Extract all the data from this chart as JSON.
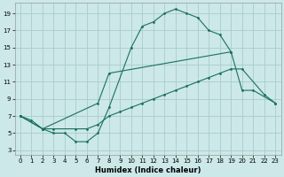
{
  "xlabel": "Humidex (Indice chaleur)",
  "background_color": "#cce8e8",
  "grid_color": "#aacccc",
  "line_color": "#1a7060",
  "xlim": [
    -0.5,
    23.5
  ],
  "ylim": [
    2.5,
    20.2
  ],
  "xticks": [
    0,
    1,
    2,
    3,
    4,
    5,
    6,
    7,
    8,
    9,
    10,
    11,
    12,
    13,
    14,
    15,
    16,
    17,
    18,
    19,
    20,
    21,
    22,
    23
  ],
  "yticks": [
    3,
    5,
    7,
    9,
    11,
    13,
    15,
    17,
    19
  ],
  "line1_x": [
    0,
    1,
    2,
    3,
    4,
    5,
    6,
    7,
    8,
    10,
    11,
    12,
    13,
    14,
    15,
    16,
    17,
    18,
    19
  ],
  "line1_y": [
    7,
    6.5,
    5.5,
    5,
    5,
    4,
    4,
    5,
    8,
    15,
    17.5,
    18,
    19,
    19.5,
    19,
    18.5,
    17,
    16.5,
    14.5
  ],
  "line2_x": [
    0,
    2,
    7,
    8,
    19,
    20,
    21,
    23
  ],
  "line2_y": [
    7,
    5.5,
    8.5,
    12,
    14.5,
    10,
    10,
    8.5
  ],
  "line3_x": [
    0,
    2,
    3,
    5,
    6,
    7,
    8,
    9,
    10,
    11,
    12,
    13,
    14,
    15,
    16,
    17,
    18,
    19,
    20,
    22,
    23
  ],
  "line3_y": [
    7,
    5.5,
    5.5,
    5.5,
    5.5,
    6,
    7,
    7.5,
    8,
    8.5,
    9,
    9.5,
    10,
    10.5,
    11,
    11.5,
    12,
    12.5,
    12.5,
    9.5,
    8.5
  ],
  "figwidth": 3.2,
  "figheight": 2.0,
  "dpi": 100
}
